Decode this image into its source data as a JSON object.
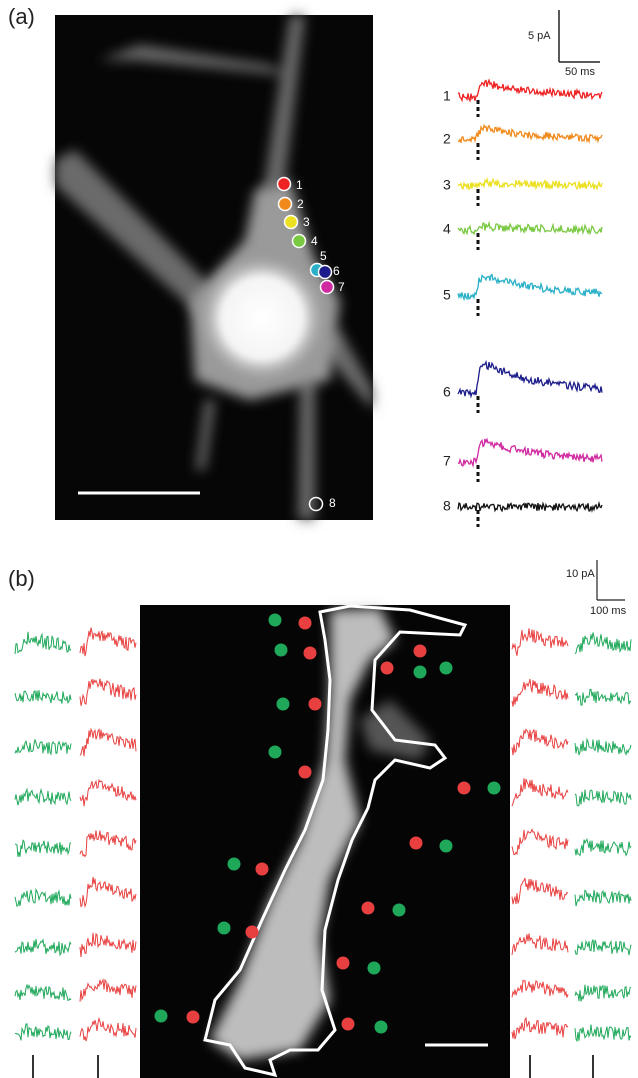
{
  "panel_a": {
    "label": "(a)",
    "scale_bar": {
      "current": "5 pA",
      "time": "50 ms"
    },
    "trace_labels": [
      "1",
      "2",
      "3",
      "4",
      "5",
      "6",
      "7",
      "8"
    ],
    "site_labels": [
      "1",
      "2",
      "3",
      "4",
      "5",
      "6",
      "7",
      "8"
    ]
  },
  "panel_b": {
    "label": "(b)",
    "scale_bar": {
      "current": "10 pA",
      "time": "100 ms"
    }
  }
}
